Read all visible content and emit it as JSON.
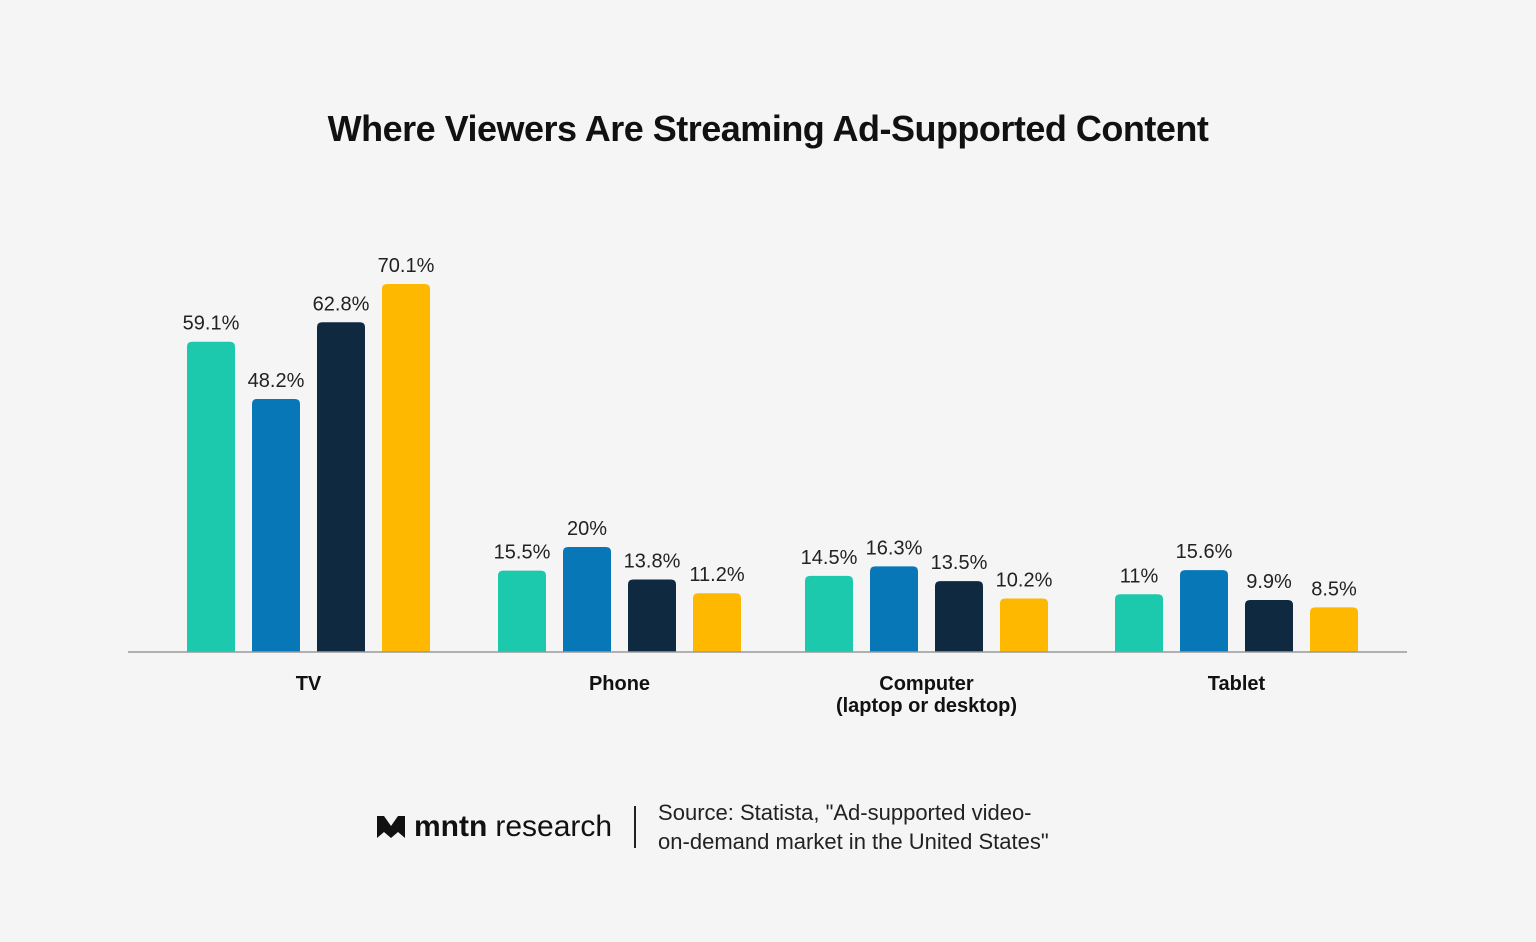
{
  "chart_data": {
    "type": "bar",
    "title": "Where Viewers Are Streaming Ad-Supported Content",
    "categories": [
      "TV",
      "Phone",
      "Computer\n(laptop or desktop)",
      "Tablet"
    ],
    "category_labels": [
      [
        "TV"
      ],
      [
        "Phone"
      ],
      [
        "Computer",
        "(laptop or desktop)"
      ],
      [
        "Tablet"
      ]
    ],
    "series": [
      {
        "values": [
          59.1,
          15.5,
          14.5,
          11
        ],
        "labels": [
          "59.1%",
          "15.5%",
          "14.5%",
          "11%"
        ],
        "color": "#1dc9ac"
      },
      {
        "values": [
          48.2,
          20,
          16.3,
          15.6
        ],
        "labels": [
          "48.2%",
          "20%",
          "16.3%",
          "15.6%"
        ],
        "color": "#0877b8"
      },
      {
        "values": [
          62.8,
          13.8,
          13.5,
          9.9
        ],
        "labels": [
          "62.8%",
          "13.8%",
          "13.5%",
          "9.9%"
        ],
        "color": "#0f2a40"
      },
      {
        "values": [
          70.1,
          11.2,
          10.2,
          8.5
        ],
        "labels": [
          "70.1%",
          "11.2%",
          "10.2%",
          "8.5%"
        ],
        "color": "#ffb800"
      }
    ],
    "ylim": [
      0,
      75
    ],
    "grid": false,
    "legend": "none",
    "xlabel": "",
    "ylabel": ""
  },
  "footer": {
    "brand_bold": "mntn",
    "brand_rest": "research",
    "source_line1": "Source: Statista, \"Ad-supported video-",
    "source_line2": "on-demand market in the United States\""
  }
}
